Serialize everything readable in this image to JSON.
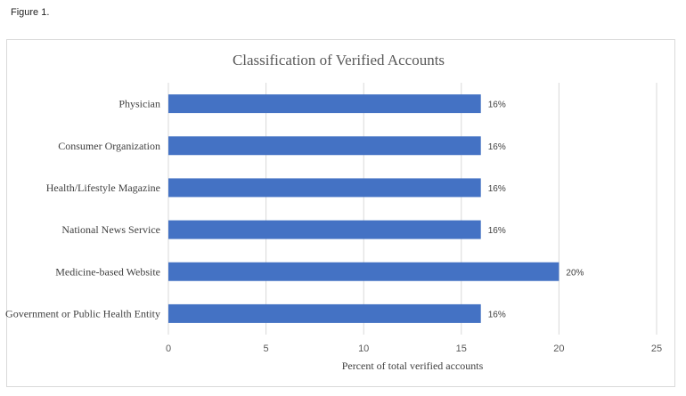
{
  "figure_label": "Figure 1.",
  "chart_data": {
    "type": "bar",
    "orientation": "horizontal",
    "title": "Classification of Verified Accounts",
    "xlabel": "Percent of total verified accounts",
    "ylabel": "",
    "categories": [
      "Physician",
      "Consumer Organization",
      "Health/Lifestyle Magazine",
      "National News Service",
      "Medicine-based Website",
      "Government or Public Health Entity"
    ],
    "values": [
      16,
      16,
      16,
      16,
      20,
      16
    ],
    "data_labels": [
      "16%",
      "16%",
      "16%",
      "16%",
      "20%",
      "16%"
    ],
    "xlim": [
      0,
      25
    ],
    "xticks": [
      "0",
      "5",
      "10",
      "15",
      "20",
      "25"
    ],
    "grid": "vertical",
    "legend": "none",
    "bar_color": "#4472c4",
    "grid_color": "#d9d9d9"
  }
}
